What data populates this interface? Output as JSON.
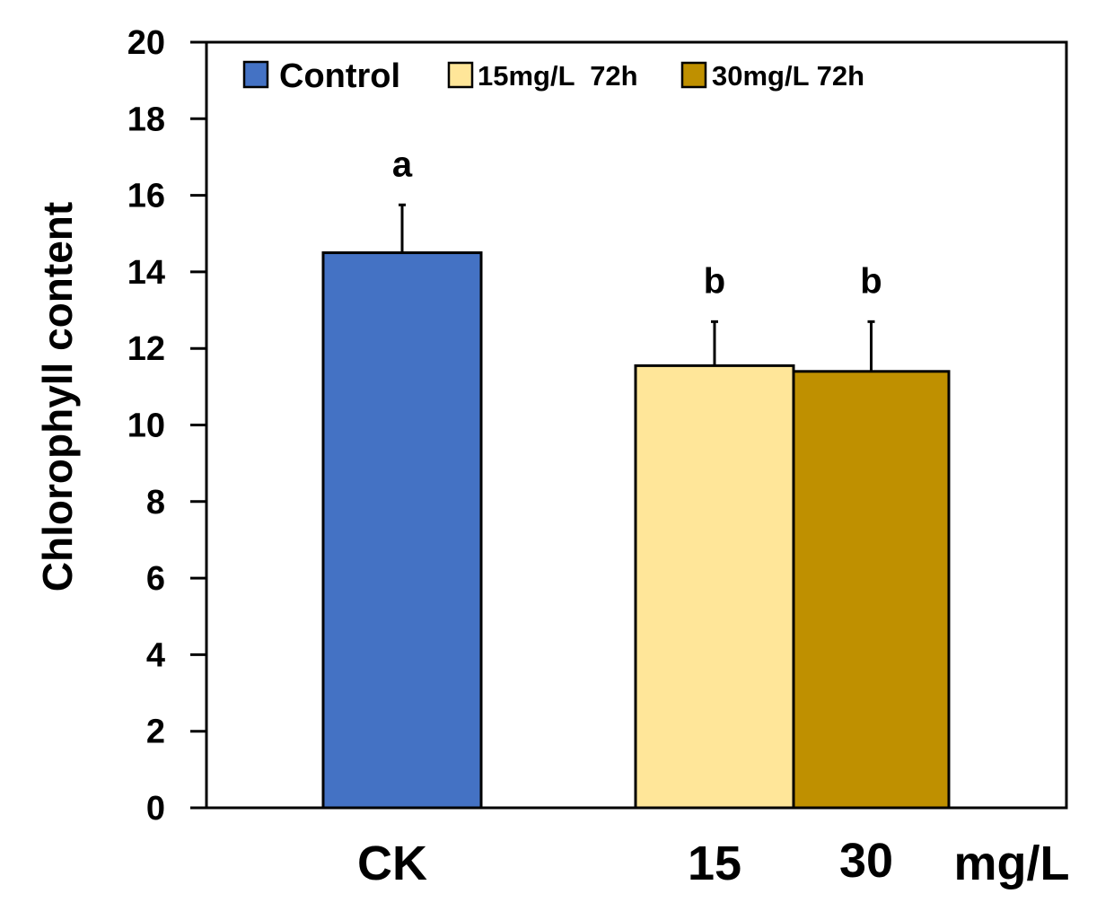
{
  "chart_data": {
    "type": "bar",
    "title": "",
    "ylabel": "Chlorophyll content",
    "xlabel": "",
    "ylim": [
      0,
      20
    ],
    "yticks": [
      "0",
      "2",
      "4",
      "6",
      "8",
      "10",
      "12",
      "14",
      "16",
      "18",
      "20"
    ],
    "categories": [
      "CK",
      "15",
      "30"
    ],
    "unit_label": "mg/L",
    "grid": false,
    "legend_position": "top-left",
    "series": [
      {
        "name": "Control",
        "category": "CK",
        "value": 14.5,
        "error": 1.25,
        "significance": "a",
        "color": "#4472C4"
      },
      {
        "name": "15mg/L  72h",
        "category": "15",
        "value": 11.55,
        "error": 1.15,
        "significance": "b",
        "color": "#FFE699"
      },
      {
        "name": "30mg/L 72h",
        "category": "30",
        "value": 11.4,
        "error": 1.3,
        "significance": "b",
        "color": "#BF9000"
      }
    ]
  }
}
